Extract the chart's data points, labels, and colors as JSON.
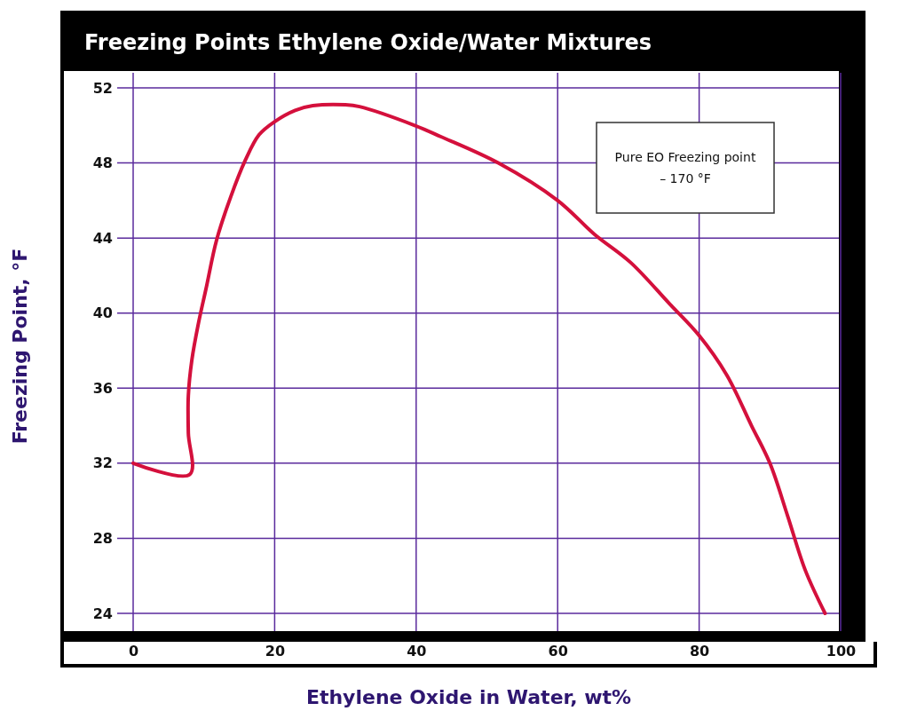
{
  "chart_data": {
    "type": "line",
    "title": "Freezing Points Ethylene Oxide/Water Mixtures",
    "xlabel": "Ethylene Oxide in Water, wt%",
    "ylabel": "Freezing Point, °F",
    "x": [
      0,
      8,
      7.8,
      7.8,
      8.3,
      9.2,
      10.3,
      11.8,
      13.8,
      15.8,
      17.8,
      20,
      22.9,
      25.4,
      30,
      32,
      39.8,
      43.5,
      51.6,
      60,
      65.2,
      70.3,
      75.8,
      80,
      83.9,
      87.4,
      90,
      92.5,
      95,
      97.8
    ],
    "values": [
      32,
      31.4,
      33.6,
      35.6,
      37.5,
      39.4,
      41.3,
      43.9,
      46.2,
      48.1,
      49.5,
      50.2,
      50.8,
      51.05,
      51.1,
      51,
      50,
      49.4,
      48,
      46,
      44.2,
      42.7,
      40.5,
      38.8,
      36.7,
      34,
      32,
      29.2,
      26.3,
      24
    ],
    "color": "#d4103c",
    "xlim": [
      0,
      100
    ],
    "ylim": [
      24,
      52
    ],
    "xticks": [
      0,
      20,
      40,
      60,
      80,
      100
    ],
    "yticks": [
      24,
      28,
      32,
      36,
      40,
      44,
      48,
      52
    ],
    "grid": true,
    "line_style": "solid",
    "annotations": [
      "Pure EO Freezing point\n– 170 °F"
    ]
  }
}
